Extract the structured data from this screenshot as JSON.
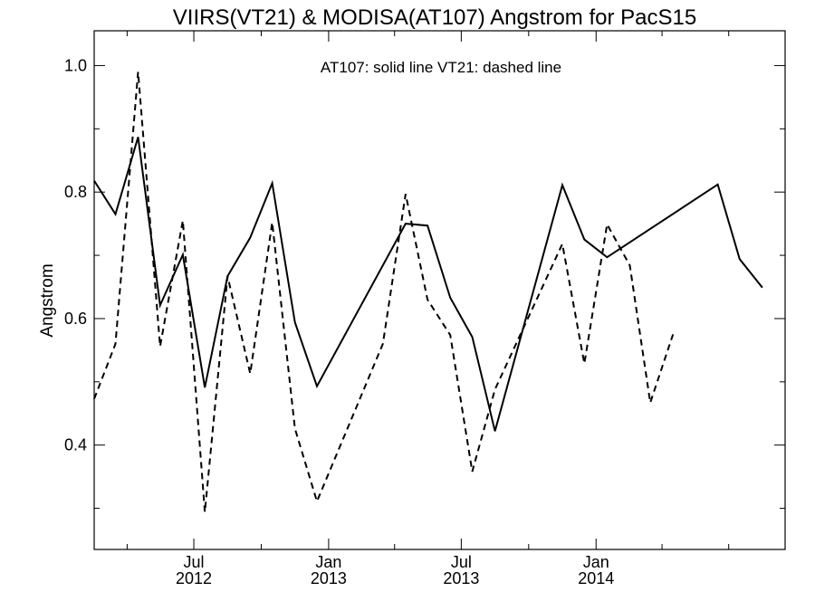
{
  "chart_data": {
    "type": "line",
    "title": "VIIRS(VT21) & MODISA(AT107)  Angstrom for PacS15",
    "annotation": "AT107: solid line   VT21: dashed line",
    "xlabel": "",
    "ylabel": "Angstrom",
    "xlim": [
      "2012-02-16",
      "2014-09-16"
    ],
    "ylim": [
      0.235,
      1.055
    ],
    "y_ticks_major": [
      0.4,
      0.6,
      0.8,
      1.0
    ],
    "y_tick_labels": [
      "0.4",
      "0.6",
      "0.8",
      "1.0"
    ],
    "y_ticks_minor": [
      0.3,
      0.5,
      0.7,
      0.9
    ],
    "x_ticks_major": [
      {
        "date": "2012-07-01",
        "label1": "Jul",
        "label2": "2012"
      },
      {
        "date": "2013-01-01",
        "label1": "Jan",
        "label2": "2013"
      },
      {
        "date": "2013-07-01",
        "label1": "Jul",
        "label2": "2013"
      },
      {
        "date": "2014-01-01",
        "label1": "Jan",
        "label2": "2014"
      }
    ],
    "x_ticks_minor": [
      "2012-04-01",
      "2012-10-01",
      "2013-04-01",
      "2013-10-01",
      "2014-04-01",
      "2014-07-01"
    ],
    "grid": false,
    "legend": "none",
    "series": [
      {
        "name": "AT107",
        "style": "solid",
        "color": "#000000",
        "points": [
          [
            "2012-02-16",
            0.818
          ],
          [
            "2012-03-16",
            0.765
          ],
          [
            "2012-04-16",
            0.887
          ],
          [
            "2012-05-16",
            0.621
          ],
          [
            "2012-06-16",
            0.701
          ],
          [
            "2012-07-16",
            0.491
          ],
          [
            "2012-08-16",
            0.667
          ],
          [
            "2012-09-16",
            0.728
          ],
          [
            "2012-10-16",
            0.814
          ],
          [
            "2012-11-16",
            0.594
          ],
          [
            "2012-12-16",
            0.493
          ],
          [
            "2013-04-16",
            0.75
          ],
          [
            "2013-05-16",
            0.747
          ],
          [
            "2013-06-16",
            0.633
          ],
          [
            "2013-07-16",
            0.571
          ],
          [
            "2013-08-16",
            0.422
          ],
          [
            "2013-11-16",
            0.811
          ],
          [
            "2013-12-16",
            0.725
          ],
          [
            "2014-01-16",
            0.697
          ],
          [
            "2014-06-16",
            0.812
          ],
          [
            "2014-07-16",
            0.694
          ],
          [
            "2014-08-16",
            0.649
          ]
        ]
      },
      {
        "name": "VT21",
        "style": "dashed",
        "color": "#000000",
        "points": [
          [
            "2012-02-16",
            0.473
          ],
          [
            "2012-03-16",
            0.56
          ],
          [
            "2012-04-16",
            0.99
          ],
          [
            "2012-05-16",
            0.556
          ],
          [
            "2012-06-16",
            0.755
          ],
          [
            "2012-07-16",
            0.294
          ],
          [
            "2012-08-16",
            0.667
          ],
          [
            "2012-09-16",
            0.513
          ],
          [
            "2012-10-16",
            0.752
          ],
          [
            "2012-11-16",
            0.426
          ],
          [
            "2012-12-16",
            0.311
          ],
          [
            "2013-03-16",
            0.56
          ],
          [
            "2013-04-16",
            0.797
          ],
          [
            "2013-05-16",
            0.63
          ],
          [
            "2013-06-16",
            0.574
          ],
          [
            "2013-07-16",
            0.358
          ],
          [
            "2013-08-16",
            0.488
          ],
          [
            "2013-11-16",
            0.718
          ],
          [
            "2013-12-16",
            0.529
          ],
          [
            "2014-01-16",
            0.749
          ],
          [
            "2014-02-16",
            0.684
          ],
          [
            "2014-03-16",
            0.467
          ],
          [
            "2014-04-16",
            0.575
          ]
        ]
      }
    ]
  }
}
